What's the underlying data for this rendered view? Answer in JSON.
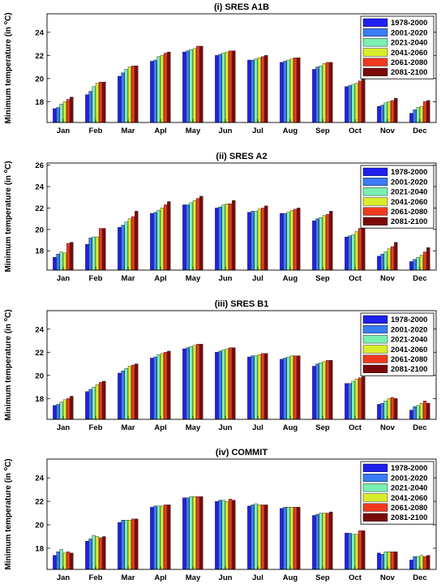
{
  "chart_data": [
    {
      "type": "bar",
      "title": "(i) SRES A1B",
      "ylabel_prefix": "Minimum temperature (in ",
      "ylabel_unit": "o",
      "ylabel_suffix": "C)",
      "categories": [
        "Jan",
        "Feb",
        "Mar",
        "Apl",
        "May",
        "Jun",
        "Jul",
        "Aug",
        "Sep",
        "Oct",
        "Nov",
        "Dec"
      ],
      "ylim": [
        16.2,
        25.6
      ],
      "yticks": [
        18,
        20,
        22,
        24
      ],
      "legend_position": "top-right",
      "series": [
        {
          "name": "1978-2000",
          "color": "#1f1ff0",
          "values": [
            17.4,
            18.6,
            20.2,
            21.5,
            22.3,
            22.0,
            21.6,
            21.4,
            20.8,
            19.3,
            17.6,
            17.0
          ]
        },
        {
          "name": "2001-2020",
          "color": "#3a7cf5",
          "values": [
            17.5,
            18.9,
            20.5,
            21.6,
            22.4,
            22.1,
            21.6,
            21.5,
            21.0,
            19.4,
            17.7,
            17.3
          ]
        },
        {
          "name": "2021-2040",
          "color": "#7af0b2",
          "values": [
            17.8,
            19.3,
            20.8,
            21.9,
            22.5,
            22.2,
            21.7,
            21.6,
            21.1,
            19.5,
            17.9,
            17.5
          ]
        },
        {
          "name": "2041-2060",
          "color": "#d9ee2a",
          "values": [
            18.0,
            19.6,
            21.0,
            22.0,
            22.6,
            22.3,
            21.8,
            21.7,
            21.3,
            19.6,
            18.0,
            17.6
          ]
        },
        {
          "name": "2061-2080",
          "color": "#f03a1f",
          "values": [
            18.2,
            19.7,
            21.1,
            22.2,
            22.8,
            22.4,
            21.9,
            21.8,
            21.4,
            19.8,
            18.1,
            18.0
          ]
        },
        {
          "name": "2081-2100",
          "color": "#7a0a0a",
          "values": [
            18.4,
            19.7,
            21.1,
            22.3,
            22.8,
            22.4,
            22.0,
            21.8,
            21.4,
            20.0,
            18.3,
            18.1
          ]
        }
      ]
    },
    {
      "type": "bar",
      "title": "(ii) SRES A2",
      "ylabel_prefix": "Minimum temperature (in ",
      "ylabel_unit": "o",
      "ylabel_suffix": "C)",
      "categories": [
        "Jan",
        "Feb",
        "Mar",
        "Apl",
        "May",
        "Jun",
        "Jul",
        "Aug",
        "Sep",
        "Oct",
        "Nov",
        "Dec"
      ],
      "ylim": [
        16.2,
        26.2
      ],
      "yticks": [
        18,
        20,
        22,
        24,
        26
      ],
      "legend_position": "top-right",
      "series": [
        {
          "name": "1978-2000",
          "color": "#1f1ff0",
          "values": [
            17.4,
            18.6,
            20.2,
            21.5,
            22.3,
            22.0,
            21.6,
            21.5,
            20.8,
            19.3,
            17.5,
            17.0
          ]
        },
        {
          "name": "2001-2020",
          "color": "#3a7cf5",
          "values": [
            17.7,
            19.2,
            20.4,
            21.6,
            22.3,
            22.1,
            21.7,
            21.5,
            21.0,
            19.4,
            17.7,
            17.2
          ]
        },
        {
          "name": "2021-2040",
          "color": "#7af0b2",
          "values": [
            17.9,
            19.3,
            20.7,
            21.8,
            22.5,
            22.3,
            21.7,
            21.6,
            21.1,
            19.5,
            17.9,
            17.4
          ]
        },
        {
          "name": "2041-2060",
          "color": "#d9ee2a",
          "values": [
            17.8,
            19.3,
            21.0,
            22.0,
            22.7,
            22.4,
            21.9,
            21.8,
            21.3,
            19.8,
            18.2,
            17.6
          ]
        },
        {
          "name": "2061-2080",
          "color": "#f03a1f",
          "values": [
            18.7,
            20.1,
            21.2,
            22.3,
            22.9,
            22.4,
            22.0,
            21.9,
            21.4,
            20.1,
            18.4,
            17.9
          ]
        },
        {
          "name": "2081-2100",
          "color": "#7a0a0a",
          "values": [
            18.8,
            20.1,
            21.7,
            22.6,
            23.1,
            22.7,
            22.2,
            22.0,
            21.7,
            20.3,
            18.8,
            18.3
          ]
        }
      ]
    },
    {
      "type": "bar",
      "title": "(iii) SRES B1",
      "ylabel_prefix": "Minimum temperature (in ",
      "ylabel_unit": "o",
      "ylabel_suffix": "C)",
      "categories": [
        "Jan",
        "Feb",
        "Mar",
        "Apl",
        "May",
        "Jun",
        "Jul",
        "Aug",
        "Sep",
        "Oct",
        "Nov",
        "Dec"
      ],
      "ylim": [
        16.2,
        25.6
      ],
      "yticks": [
        18,
        20,
        22,
        24
      ],
      "legend_position": "top-right",
      "series": [
        {
          "name": "1978-2000",
          "color": "#1f1ff0",
          "values": [
            17.4,
            18.6,
            20.2,
            21.5,
            22.3,
            22.0,
            21.6,
            21.4,
            20.8,
            19.3,
            17.5,
            17.0
          ]
        },
        {
          "name": "2001-2020",
          "color": "#3a7cf5",
          "values": [
            17.5,
            18.8,
            20.4,
            21.6,
            22.4,
            22.1,
            21.7,
            21.5,
            21.0,
            19.3,
            17.6,
            17.3
          ]
        },
        {
          "name": "2021-2040",
          "color": "#7af0b2",
          "values": [
            17.7,
            19.0,
            20.6,
            21.8,
            22.5,
            22.2,
            21.7,
            21.6,
            21.1,
            19.5,
            17.8,
            17.4
          ]
        },
        {
          "name": "2041-2060",
          "color": "#d9ee2a",
          "values": [
            17.9,
            19.2,
            20.8,
            21.9,
            22.6,
            22.3,
            21.8,
            21.7,
            21.2,
            19.7,
            18.0,
            17.6
          ]
        },
        {
          "name": "2061-2080",
          "color": "#f03a1f",
          "values": [
            18.0,
            19.4,
            20.9,
            22.0,
            22.7,
            22.4,
            21.9,
            21.7,
            21.3,
            19.8,
            18.1,
            17.8
          ]
        },
        {
          "name": "2081-2100",
          "color": "#7a0a0a",
          "values": [
            18.2,
            19.5,
            21.0,
            22.1,
            22.7,
            22.4,
            21.9,
            21.7,
            21.3,
            19.9,
            18.0,
            17.6
          ]
        }
      ]
    },
    {
      "type": "bar",
      "title": "(iv) COMMIT",
      "ylabel_prefix": "Minimum temperature (in ",
      "ylabel_unit": "o",
      "ylabel_suffix": "C)",
      "categories": [
        "Jan",
        "Feb",
        "Mar",
        "Apl",
        "May",
        "Jun",
        "Jul",
        "Aug",
        "Sep",
        "Oct",
        "Nov",
        "Dec"
      ],
      "ylim": [
        16.2,
        25.6
      ],
      "yticks": [
        18,
        20,
        22,
        24
      ],
      "legend_position": "top-right",
      "series": [
        {
          "name": "1978-2000",
          "color": "#1f1ff0",
          "values": [
            17.4,
            18.6,
            20.2,
            21.5,
            22.3,
            22.0,
            21.6,
            21.4,
            20.8,
            19.3,
            17.6,
            17.0
          ]
        },
        {
          "name": "2001-2020",
          "color": "#3a7cf5",
          "values": [
            17.7,
            18.8,
            20.4,
            21.6,
            22.3,
            22.1,
            21.7,
            21.5,
            20.9,
            19.3,
            17.5,
            17.3
          ]
        },
        {
          "name": "2021-2040",
          "color": "#7af0b2",
          "values": [
            17.9,
            19.1,
            20.4,
            21.6,
            22.4,
            22.1,
            21.8,
            21.5,
            21.0,
            19.2,
            17.7,
            17.3
          ]
        },
        {
          "name": "2041-2060",
          "color": "#d9ee2a",
          "values": [
            17.6,
            19.0,
            20.4,
            21.6,
            22.4,
            22.0,
            21.7,
            21.5,
            21.0,
            19.2,
            17.7,
            17.4
          ]
        },
        {
          "name": "2061-2080",
          "color": "#f03a1f",
          "values": [
            17.7,
            18.9,
            20.5,
            21.7,
            22.4,
            22.2,
            21.7,
            21.5,
            21.0,
            19.5,
            17.7,
            17.3
          ]
        },
        {
          "name": "2081-2100",
          "color": "#7a0a0a",
          "values": [
            17.6,
            19.0,
            20.5,
            21.7,
            22.4,
            22.1,
            21.7,
            21.5,
            21.1,
            19.5,
            17.7,
            17.4
          ]
        }
      ]
    }
  ]
}
